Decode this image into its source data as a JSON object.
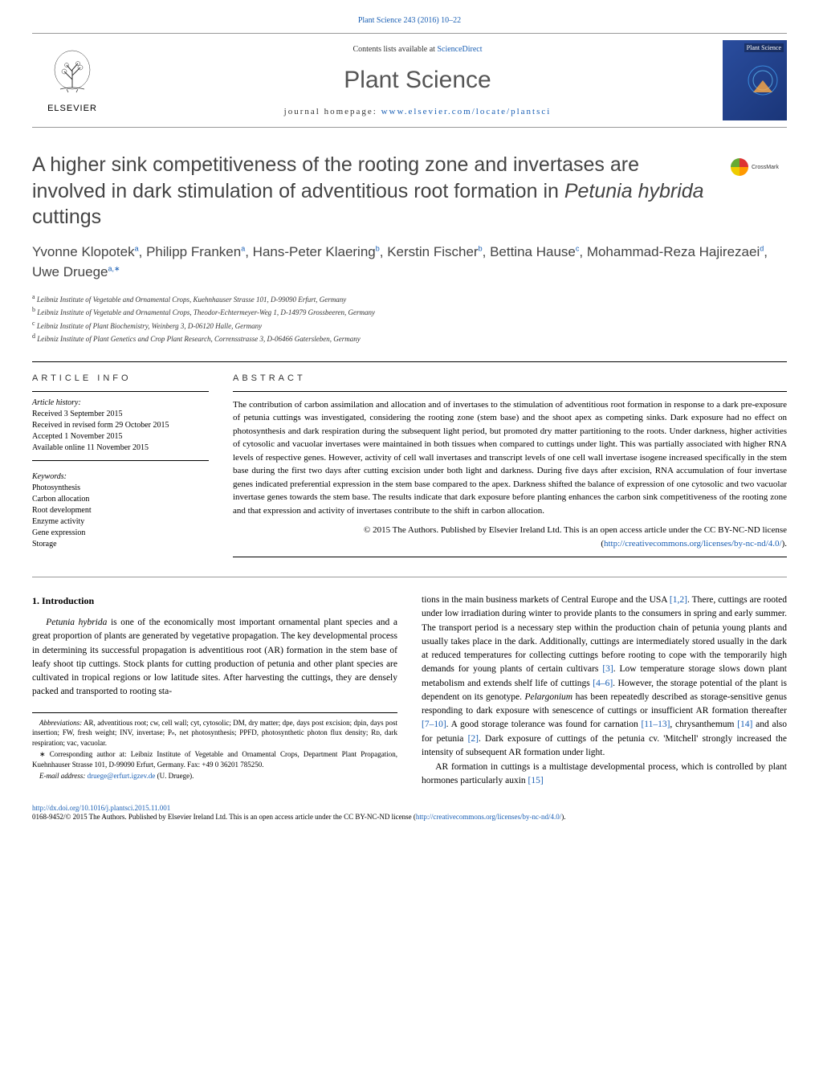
{
  "header": {
    "citation": "Plant Science 243 (2016) 10–22",
    "contents_text": "Contents lists available at ",
    "contents_link": "ScienceDirect",
    "journal_name": "Plant Science",
    "homepage_prefix": "journal homepage: ",
    "homepage_url": "www.elsevier.com/locate/plantsci",
    "publisher": "ELSEVIER",
    "cover_label": "Plant Science"
  },
  "crossmark": {
    "label": "CrossMark"
  },
  "title": {
    "pre": "A higher sink competitiveness of the rooting zone and invertases are involved in dark stimulation of adventitious root formation in ",
    "italic": "Petunia hybrida",
    "post": " cuttings"
  },
  "authors": [
    {
      "name": "Yvonne Klopotek",
      "aff": "a"
    },
    {
      "name": "Philipp Franken",
      "aff": "a"
    },
    {
      "name": "Hans-Peter Klaering",
      "aff": "b"
    },
    {
      "name": "Kerstin Fischer",
      "aff": "b"
    },
    {
      "name": "Bettina Hause",
      "aff": "c"
    },
    {
      "name": "Mohammad-Reza Hajirezaei",
      "aff": "d"
    },
    {
      "name": "Uwe Druege",
      "aff": "a,∗"
    }
  ],
  "affiliations": [
    {
      "key": "a",
      "text": "Leibniz Institute of Vegetable and Ornamental Crops, Kuehnhauser Strasse 101, D-99090 Erfurt, Germany"
    },
    {
      "key": "b",
      "text": "Leibniz Institute of Vegetable and Ornamental Crops, Theodor-Echtermeyer-Weg 1, D-14979 Grossbeeren, Germany"
    },
    {
      "key": "c",
      "text": "Leibniz Institute of Plant Biochemistry, Weinberg 3, D-06120 Halle, Germany"
    },
    {
      "key": "d",
      "text": "Leibniz Institute of Plant Genetics and Crop Plant Research, Corrensstrasse 3, D-06466 Gatersleben, Germany"
    }
  ],
  "article_info": {
    "label": "ARTICLE INFO",
    "history_label": "Article history:",
    "history": [
      "Received 3 September 2015",
      "Received in revised form 29 October 2015",
      "Accepted 1 November 2015",
      "Available online 11 November 2015"
    ],
    "keywords_label": "Keywords:",
    "keywords": [
      "Photosynthesis",
      "Carbon allocation",
      "Root development",
      "Enzyme activity",
      "Gene expression",
      "Storage"
    ]
  },
  "abstract": {
    "label": "ABSTRACT",
    "text": "The contribution of carbon assimilation and allocation and of invertases to the stimulation of adventitious root formation in response to a dark pre-exposure of petunia cuttings was investigated, considering the rooting zone (stem base) and the shoot apex as competing sinks. Dark exposure had no effect on photosynthesis and dark respiration during the subsequent light period, but promoted dry matter partitioning to the roots. Under darkness, higher activities of cytosolic and vacuolar invertases were maintained in both tissues when compared to cuttings under light. This was partially associated with higher RNA levels of respective genes. However, activity of cell wall invertases and transcript levels of one cell wall invertase isogene increased specifically in the stem base during the first two days after cutting excision under both light and darkness. During five days after excision, RNA accumulation of four invertase genes indicated preferential expression in the stem base compared to the apex. Darkness shifted the balance of expression of one cytosolic and two vacuolar invertase genes towards the stem base. The results indicate that dark exposure before planting enhances the carbon sink competitiveness of the rooting zone and that expression and activity of invertases contribute to the shift in carbon allocation.",
    "license_pre": "© 2015 The Authors. Published by Elsevier Ireland Ltd. This is an open access article under the CC BY-NC-ND license (",
    "license_url": "http://creativecommons.org/licenses/by-nc-nd/4.0/",
    "license_post": ")."
  },
  "intro": {
    "heading": "1.  Introduction",
    "col1_p1_pre": "Petunia hybrida",
    "col1_p1_post": " is one of the economically most important ornamental plant species and a great proportion of plants are generated by vegetative propagation. The key developmental process in determining its successful propagation is adventitious root (AR) formation in the stem base of leafy shoot tip cuttings. Stock plants for cutting production of petunia and other plant species are cultivated in tropical regions or low latitude sites. After harvesting the cuttings, they are densely packed and transported to rooting sta-",
    "col2_p1_a": "tions in the main business markets of Central Europe and the USA ",
    "col2_ref1": "[1,2]",
    "col2_p1_b": ". There, cuttings are rooted under low irradiation during winter to provide plants to the consumers in spring and early summer. The transport period is a necessary step within the production chain of petunia young plants and usually takes place in the dark. Additionally, cuttings are intermediately stored usually in the dark at reduced temperatures for collecting cuttings before rooting to cope with the temporarily high demands for young plants of certain cultivars ",
    "col2_ref2": "[3]",
    "col2_p1_c": ". Low temperature storage slows down plant metabolism and extends shelf life of cuttings ",
    "col2_ref3": "[4–6]",
    "col2_p1_d": ". However, the storage potential of the plant is dependent on its genotype. ",
    "col2_italic1": "Pelargonium",
    "col2_p1_e": " has been repeatedly described as storage-sensitive genus responding to dark exposure with senescence of cuttings or insufficient AR formation thereafter ",
    "col2_ref4": "[7–10]",
    "col2_p1_f": ". A good storage tolerance was found for carnation ",
    "col2_ref5": "[11–13]",
    "col2_p1_g": ", chrysanthemum ",
    "col2_ref6": "[14]",
    "col2_p1_h": " and also for petunia ",
    "col2_ref7": "[2]",
    "col2_p1_i": ". Dark exposure of cuttings of the petunia cv. 'Mitchell' strongly increased the intensity of subsequent AR formation under light.",
    "col2_p2_a": "AR formation in cuttings is a multistage developmental process, which is controlled by plant hormones particularly auxin ",
    "col2_ref8": "[15]"
  },
  "footnotes": {
    "abbrev_label": "Abbreviations:",
    "abbrev_text": " AR, adventitious root; cw, cell wall; cyt, cytosolic; DM, dry matter; dpe, days post excision; dpin, days post insertion; FW, fresh weight; INV, invertase; Pₙ, net photosynthesis; PPFD, photosynthetic photon flux density; Rᴅ, dark respiration; vac, vacuolar.",
    "corr_text": "∗ Corresponding author at: Leibniz Institute of Vegetable and Ornamental Crops, Department Plant Propagation, Kuehnhauser Strasse 101, D-99090 Erfurt, Germany. Fax: +49 0 36201 785250.",
    "email_label": "E-mail address: ",
    "email": "druege@erfurt.igzev.de",
    "email_name": " (U. Druege)."
  },
  "footer": {
    "doi": "http://dx.doi.org/10.1016/j.plantsci.2015.11.001",
    "copyright_pre": "0168-9452/© 2015 The Authors. Published by Elsevier Ireland Ltd. This is an open access article under the CC BY-NC-ND license (",
    "copyright_url": "http://creativecommons.org/licenses/by-nc-nd/4.0/",
    "copyright_post": ")."
  },
  "colors": {
    "link": "#1a5fb4",
    "text_gray": "#555",
    "border": "#999"
  }
}
